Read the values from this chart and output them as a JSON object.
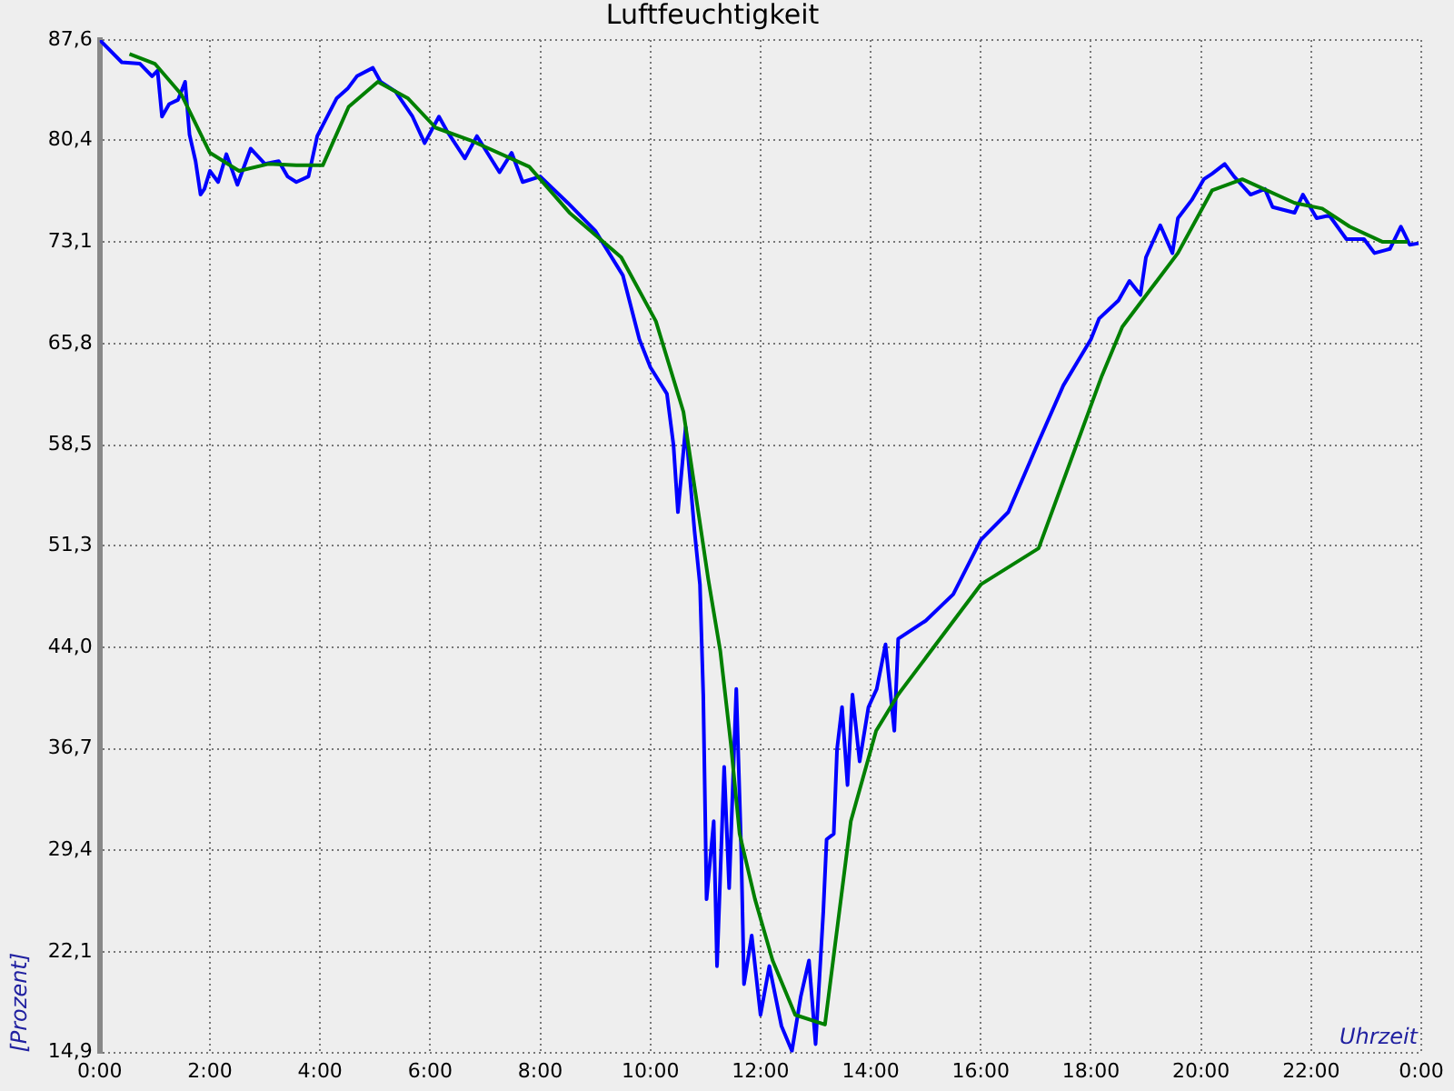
{
  "chart_data": {
    "type": "line",
    "title": "Luftfeuchtigkeit",
    "xlabel": "Uhrzeit",
    "ylabel": "[Prozent]",
    "xlim": [
      0,
      24
    ],
    "xticks": [
      {
        "value": 0,
        "label": "0:00"
      },
      {
        "value": 2,
        "label": "2:00"
      },
      {
        "value": 4,
        "label": "4:00"
      },
      {
        "value": 6,
        "label": "6:00"
      },
      {
        "value": 8,
        "label": "8:00"
      },
      {
        "value": 10,
        "label": "10:00"
      },
      {
        "value": 12,
        "label": "12:00"
      },
      {
        "value": 14,
        "label": "14:00"
      },
      {
        "value": 16,
        "label": "16:00"
      },
      {
        "value": 18,
        "label": "18:00"
      },
      {
        "value": 20,
        "label": "20:00"
      },
      {
        "value": 22,
        "label": "22:00"
      },
      {
        "value": 24,
        "label": "0:00"
      }
    ],
    "ylim": [
      14.9,
      87.6
    ],
    "yticks": [
      {
        "value": 14.9,
        "label": "14,9"
      },
      {
        "value": 22.1,
        "label": "22,1"
      },
      {
        "value": 29.4,
        "label": "29,4"
      },
      {
        "value": 36.7,
        "label": "36,7"
      },
      {
        "value": 44.0,
        "label": "44,0"
      },
      {
        "value": 51.3,
        "label": "51,3"
      },
      {
        "value": 58.5,
        "label": "58,5"
      },
      {
        "value": 65.8,
        "label": "65,8"
      },
      {
        "value": 73.1,
        "label": "73,1"
      },
      {
        "value": 80.4,
        "label": "80,4"
      },
      {
        "value": 87.6,
        "label": "87,6"
      }
    ],
    "grid": true,
    "legend": false,
    "marker": "none",
    "line_style": "solid",
    "series": [
      {
        "color": "#0000ff",
        "x": [
          0,
          0.4,
          0.73,
          0.95,
          1.05,
          1.13,
          1.26,
          1.42,
          1.55,
          1.63,
          1.74,
          1.83,
          1.9,
          2.0,
          2.15,
          2.3,
          2.5,
          2.74,
          3.0,
          3.25,
          3.41,
          3.57,
          3.79,
          3.95,
          4.17,
          4.3,
          4.5,
          4.67,
          4.96,
          5.1,
          5.37,
          5.68,
          5.9,
          6.16,
          6.3,
          6.63,
          6.85,
          7.26,
          7.48,
          7.68,
          8.0,
          8.5,
          9.0,
          9.5,
          9.8,
          10.0,
          10.3,
          10.42,
          10.5,
          10.64,
          10.8,
          10.9,
          10.96,
          11.02,
          11.15,
          11.21,
          11.34,
          11.43,
          11.56,
          11.65,
          11.7,
          11.84,
          12.0,
          12.16,
          12.38,
          12.57,
          12.73,
          12.88,
          13.0,
          13.14,
          13.2,
          13.33,
          13.39,
          13.48,
          13.58,
          13.67,
          13.8,
          13.96,
          14.11,
          14.27,
          14.43,
          14.5,
          15.0,
          15.5,
          16.0,
          16.5,
          17.0,
          17.5,
          18.0,
          18.15,
          18.5,
          18.7,
          18.9,
          19.0,
          19.26,
          19.48,
          19.58,
          19.83,
          20.05,
          20.2,
          20.43,
          20.6,
          20.9,
          21.16,
          21.3,
          21.7,
          21.85,
          22.1,
          22.33,
          22.64,
          22.96,
          23.15,
          23.43,
          23.63,
          23.79,
          23.95
        ],
        "values": [
          87.6,
          86.0,
          85.9,
          85.0,
          85.4,
          82.1,
          83.0,
          83.3,
          84.6,
          80.8,
          78.9,
          76.5,
          76.9,
          78.2,
          77.4,
          79.4,
          77.2,
          79.8,
          78.7,
          78.9,
          77.8,
          77.4,
          77.8,
          80.7,
          82.4,
          83.4,
          84.1,
          85.0,
          85.6,
          84.6,
          83.9,
          82.1,
          80.2,
          82.1,
          81.1,
          79.1,
          80.7,
          78.1,
          79.5,
          77.4,
          77.8,
          75.9,
          73.9,
          70.7,
          66.1,
          64.1,
          62.2,
          58.5,
          53.7,
          59.8,
          52.4,
          48.5,
          40.6,
          25.9,
          31.5,
          21.1,
          35.4,
          26.7,
          41.0,
          29.3,
          19.8,
          23.3,
          17.6,
          21.1,
          16.8,
          15.0,
          18.9,
          21.5,
          15.5,
          25.0,
          30.2,
          30.6,
          36.7,
          39.7,
          34.1,
          40.6,
          35.8,
          39.7,
          41.0,
          44.2,
          38.0,
          44.6,
          45.9,
          47.8,
          51.7,
          53.7,
          58.3,
          62.8,
          66.1,
          67.6,
          68.9,
          70.3,
          69.3,
          72.0,
          74.3,
          72.3,
          74.8,
          76.1,
          77.6,
          78.0,
          78.7,
          77.8,
          76.5,
          76.9,
          75.6,
          75.2,
          76.5,
          74.8,
          75.0,
          73.3,
          73.3,
          72.3,
          72.6,
          74.2,
          72.9,
          73.0
        ]
      },
      {
        "color": "#008000",
        "x": [
          0.54,
          1.0,
          1.48,
          2.0,
          2.53,
          3.06,
          3.57,
          4.05,
          4.52,
          5.05,
          5.6,
          6.1,
          6.73,
          7.8,
          8.53,
          9.47,
          10.1,
          10.6,
          11.05,
          11.27,
          11.46,
          11.62,
          11.9,
          12.22,
          12.63,
          13.17,
          13.36,
          13.64,
          14.1,
          14.5,
          16.0,
          17.05,
          18.2,
          18.57,
          19.58,
          20.2,
          20.75,
          21.7,
          22.2,
          22.7,
          23.3,
          23.75
        ],
        "values": [
          86.6,
          85.9,
          83.7,
          79.5,
          78.2,
          78.7,
          78.6,
          78.6,
          82.8,
          84.6,
          83.4,
          81.3,
          80.4,
          78.5,
          75.2,
          72.0,
          67.4,
          60.9,
          48.9,
          43.7,
          37.1,
          30.6,
          25.9,
          21.5,
          17.6,
          16.9,
          22.8,
          31.5,
          38.0,
          40.6,
          48.5,
          51.1,
          63.5,
          67.0,
          72.3,
          76.8,
          77.6,
          75.9,
          75.5,
          74.2,
          73.1,
          73.1
        ]
      }
    ]
  }
}
